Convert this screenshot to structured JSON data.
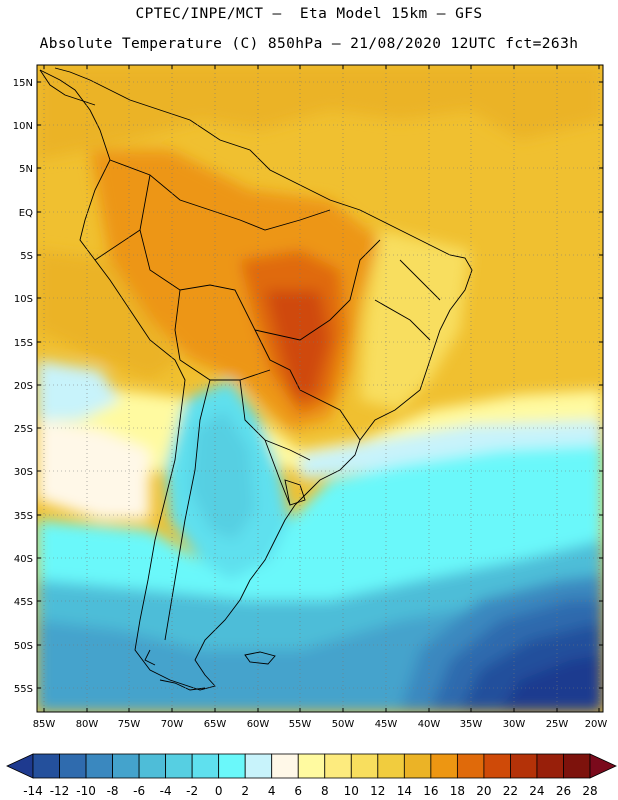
{
  "header": {
    "line1": "CPTEC/INPE/MCT –  Eta Model 15km – GFS",
    "line2": "Absolute Temperature (C) 850hPa – 21/08/2020 12UTC fct=263h"
  },
  "map": {
    "lat_labels": [
      "15N",
      "10N",
      "5N",
      "EQ",
      "5S",
      "10S",
      "15S",
      "20S",
      "25S",
      "30S",
      "35S",
      "40S",
      "45S",
      "50S",
      "55S"
    ],
    "lon_labels": [
      "85W",
      "80W",
      "75W",
      "70W",
      "65W",
      "60W",
      "55W",
      "50W",
      "45W",
      "40W",
      "35W",
      "30W",
      "25W",
      "20W"
    ]
  },
  "colorbar": {
    "ticks": [
      "-14",
      "-12",
      "-10",
      "-8",
      "-6",
      "-4",
      "-2",
      "0",
      "2",
      "4",
      "6",
      "8",
      "10",
      "12",
      "14",
      "16",
      "18",
      "20",
      "22",
      "24",
      "26",
      "28"
    ],
    "colors": [
      "#1e3a8f",
      "#24509c",
      "#2f6bae",
      "#3a88bf",
      "#44a3cc",
      "#4ebdd8",
      "#56cfe2",
      "#5fe0ee",
      "#6af8fa",
      "#c8f3fb",
      "#fff8e8",
      "#fffaa0",
      "#fdeb7e",
      "#f8de5e",
      "#f1cc3e",
      "#ebb326",
      "#ed9612",
      "#e06a0a",
      "#cf4a08",
      "#b43208",
      "#981f0a",
      "#7d120c",
      "#7a0a1c"
    ]
  }
}
